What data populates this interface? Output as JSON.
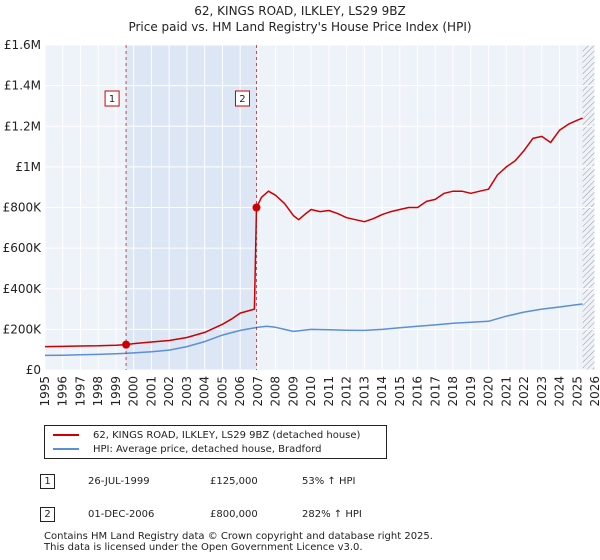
{
  "chart_data": {
    "type": "line",
    "title": "62, KINGS ROAD, ILKLEY, LS29 9BZ",
    "subtitle": "Price paid vs. HM Land Registry's House Price Index (HPI)",
    "xlim": [
      1995,
      2026
    ],
    "ylim": [
      0,
      1600000
    ],
    "x_ticks": [
      "1995",
      "1996",
      "1997",
      "1998",
      "1999",
      "2000",
      "2001",
      "2002",
      "2003",
      "2004",
      "2005",
      "2006",
      "2007",
      "2008",
      "2009",
      "2010",
      "2011",
      "2012",
      "2013",
      "2014",
      "2015",
      "2016",
      "2017",
      "2018",
      "2019",
      "2020",
      "2021",
      "2022",
      "2023",
      "2024",
      "2025",
      "2026"
    ],
    "y_ticks": [
      {
        "value": 0,
        "label": "£0"
      },
      {
        "value": 200000,
        "label": "£200K"
      },
      {
        "value": 400000,
        "label": "£400K"
      },
      {
        "value": 600000,
        "label": "£600K"
      },
      {
        "value": 800000,
        "label": "£800K"
      },
      {
        "value": 1000000,
        "label": "£1M"
      },
      {
        "value": 1200000,
        "label": "£1.2M"
      },
      {
        "value": 1400000,
        "label": "£1.4M"
      },
      {
        "value": 1600000,
        "label": "£1.6M"
      }
    ],
    "shaded_period": [
      1999.57,
      2006.92
    ],
    "future_hatch_from": 2025.3,
    "series": [
      {
        "name": "62, KINGS ROAD, ILKLEY, LS29 9BZ (detached house)",
        "color": "#cc0000",
        "x": [
          1995,
          1996,
          1997,
          1998,
          1999,
          1999.57,
          2000,
          2001,
          2002,
          2003,
          2004,
          2005,
          2005.5,
          2006,
          2006.8,
          2006.92,
          2007.2,
          2007.6,
          2008,
          2008.5,
          2009,
          2009.3,
          2009.7,
          2010,
          2010.5,
          2011,
          2011.5,
          2012,
          2012.5,
          2013,
          2013.5,
          2014,
          2014.5,
          2015,
          2015.5,
          2016,
          2016.5,
          2017,
          2017.5,
          2018,
          2018.5,
          2019,
          2019.5,
          2020,
          2020.5,
          2021,
          2021.5,
          2022,
          2022.5,
          2023,
          2023.5,
          2024,
          2024.5,
          2025,
          2025.3
        ],
        "y": [
          115000,
          116000,
          118000,
          119000,
          122000,
          125000,
          130000,
          138000,
          145000,
          160000,
          185000,
          225000,
          250000,
          280000,
          300000,
          800000,
          850000,
          880000,
          860000,
          820000,
          760000,
          740000,
          770000,
          790000,
          780000,
          785000,
          770000,
          750000,
          740000,
          730000,
          745000,
          765000,
          780000,
          790000,
          800000,
          800000,
          830000,
          840000,
          870000,
          880000,
          880000,
          870000,
          880000,
          890000,
          960000,
          1000000,
          1030000,
          1080000,
          1140000,
          1150000,
          1120000,
          1180000,
          1210000,
          1230000,
          1240000
        ]
      },
      {
        "name": "HPI: Average price, detached house, Bradford",
        "color": "#5b8fd6",
        "x": [
          1995,
          1996,
          1997,
          1998,
          1999,
          2000,
          2001,
          2002,
          2003,
          2004,
          2005,
          2006,
          2007,
          2007.5,
          2008,
          2008.5,
          2009,
          2009.5,
          2010,
          2011,
          2012,
          2013,
          2014,
          2015,
          2016,
          2017,
          2018,
          2019,
          2020,
          2021,
          2022,
          2023,
          2024,
          2025,
          2025.3
        ],
        "y": [
          72000,
          73000,
          75000,
          77000,
          80000,
          84000,
          90000,
          98000,
          115000,
          140000,
          172000,
          195000,
          210000,
          215000,
          210000,
          200000,
          190000,
          195000,
          200000,
          198000,
          196000,
          195000,
          200000,
          208000,
          215000,
          222000,
          230000,
          235000,
          240000,
          265000,
          285000,
          300000,
          310000,
          322000,
          325000
        ]
      }
    ],
    "sales": [
      {
        "n": "1",
        "x": 1999.57,
        "value": 125000
      },
      {
        "n": "2",
        "x": 2006.92,
        "value": 800000
      }
    ]
  },
  "legend": {
    "series_1_label": "62, KINGS ROAD, ILKLEY, LS29 9BZ (detached house)",
    "series_2_label": "HPI: Average price, detached house, Bradford"
  },
  "sales_table": [
    {
      "num": "1",
      "date": "26-JUL-1999",
      "price": "£125,000",
      "hpi": "53% ↑ HPI"
    },
    {
      "num": "2",
      "date": "01-DEC-2006",
      "price": "£800,000",
      "hpi": "282% ↑ HPI"
    }
  ],
  "footer": {
    "line1": "Contains HM Land Registry data © Crown copyright and database right 2025.",
    "line2": "This data is licensed under the Open Government Licence v3.0."
  }
}
